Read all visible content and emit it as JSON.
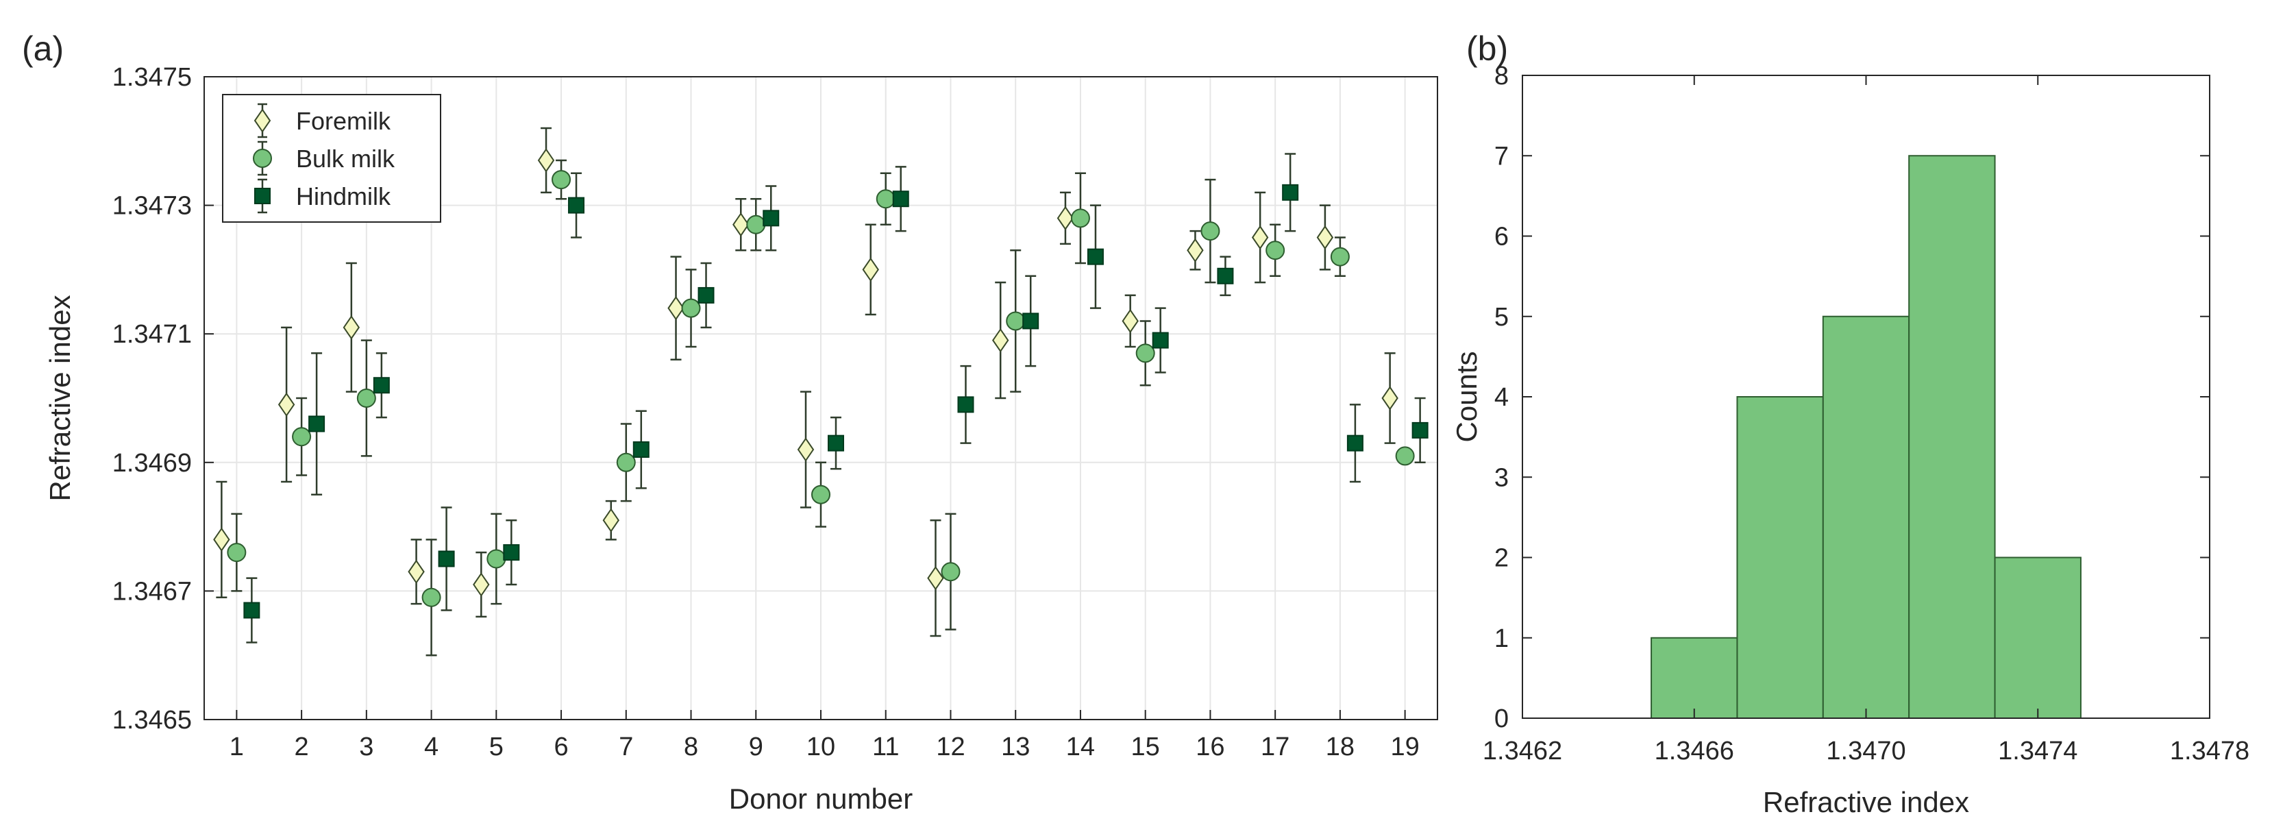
{
  "panels": {
    "a_label": "(a)",
    "b_label": "(b)"
  },
  "chart_data": [
    {
      "type": "scatter",
      "xlabel": "Donor number",
      "ylabel": "Refractive index",
      "xlim": [
        0.5,
        19.5
      ],
      "ylim": [
        1.3465,
        1.3475
      ],
      "x_ticks": [
        "1",
        "2",
        "3",
        "4",
        "5",
        "6",
        "7",
        "8",
        "9",
        "10",
        "11",
        "12",
        "13",
        "14",
        "15",
        "16",
        "17",
        "18",
        "19"
      ],
      "y_ticks": [
        "1.3465",
        "1.3467",
        "1.3469",
        "1.3471",
        "1.3473",
        "1.3475"
      ],
      "grid": true,
      "legend_position": "top-left",
      "series": [
        {
          "name": "Foremilk",
          "marker": "diamond",
          "color": "#F4F7C2",
          "x": [
            1,
            2,
            3,
            4,
            5,
            6,
            7,
            8,
            9,
            10,
            11,
            12,
            13,
            14,
            15,
            16,
            17,
            18,
            19
          ],
          "y": [
            1.34678,
            1.34699,
            1.34711,
            1.34673,
            1.34671,
            1.34737,
            1.34681,
            1.34714,
            1.34727,
            1.34692,
            1.3472,
            1.34672,
            1.34709,
            1.34728,
            1.34712,
            1.34723,
            1.34725,
            1.34725,
            1.347
          ],
          "err": [
            9e-05,
            0.00012,
            0.0001,
            5e-05,
            5e-05,
            5e-05,
            3e-05,
            8e-05,
            4e-05,
            9e-05,
            7e-05,
            9e-05,
            9e-05,
            4e-05,
            4e-05,
            3e-05,
            7e-05,
            5e-05,
            7e-05
          ]
        },
        {
          "name": "Bulk milk",
          "marker": "circle",
          "color": "#78C47D",
          "x": [
            1,
            2,
            3,
            4,
            5,
            6,
            7,
            8,
            9,
            10,
            11,
            12,
            13,
            14,
            15,
            16,
            17,
            18,
            19
          ],
          "y": [
            1.34676,
            1.34694,
            1.347,
            1.34669,
            1.34675,
            1.34734,
            1.3469,
            1.34714,
            1.34727,
            1.34685,
            1.34731,
            1.34673,
            1.34712,
            1.34728,
            1.34707,
            1.34726,
            1.34723,
            1.34722,
            1.34691
          ],
          "err": [
            6e-05,
            6e-05,
            9e-05,
            9e-05,
            7e-05,
            3e-05,
            6e-05,
            6e-05,
            4e-05,
            5e-05,
            4e-05,
            9e-05,
            0.00011,
            7e-05,
            5e-05,
            8e-05,
            4e-05,
            3e-05,
            1e-05
          ]
        },
        {
          "name": "Hindmilk",
          "marker": "square",
          "color": "#00562C",
          "x": [
            1,
            2,
            3,
            4,
            5,
            6,
            7,
            8,
            9,
            10,
            11,
            12,
            13,
            14,
            15,
            16,
            17,
            18,
            19
          ],
          "y": [
            1.34667,
            1.34696,
            1.34702,
            1.34675,
            1.34676,
            1.3473,
            1.34692,
            1.34716,
            1.34728,
            1.34693,
            1.34731,
            1.34699,
            1.34712,
            1.34722,
            1.34709,
            1.34719,
            1.34732,
            1.34693,
            1.34695
          ],
          "err": [
            5e-05,
            0.00011,
            5e-05,
            8e-05,
            5e-05,
            5e-05,
            6e-05,
            5e-05,
            5e-05,
            4e-05,
            5e-05,
            6e-05,
            7e-05,
            8e-05,
            5e-05,
            3e-05,
            6e-05,
            6e-05,
            5e-05
          ]
        }
      ]
    },
    {
      "type": "bar",
      "xlabel": "Refractive index",
      "ylabel": "Counts",
      "xlim": [
        1.3462,
        1.3478
      ],
      "ylim": [
        0,
        8
      ],
      "x_ticks": [
        "1.3462",
        "1.3466",
        "1.3470",
        "1.3474",
        "1.3478"
      ],
      "y_ticks": [
        "0",
        "1",
        "2",
        "3",
        "4",
        "5",
        "6",
        "7",
        "8"
      ],
      "bin_edges": [
        1.3463,
        1.3465,
        1.3467,
        1.3469,
        1.3471,
        1.3473,
        1.3475
      ],
      "values": [
        0,
        1,
        4,
        5,
        7,
        2
      ],
      "grid": false,
      "bar_color": "#78C47D",
      "edge_color": "#2E5E30"
    }
  ]
}
